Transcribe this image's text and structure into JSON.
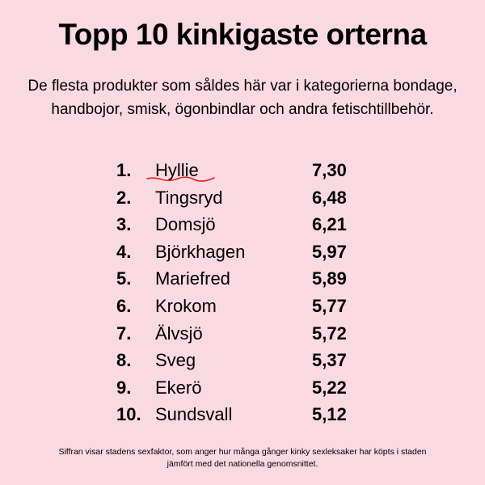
{
  "title": "Topp 10 kinkigaste orterna",
  "subtitle": "De flesta produkter som såldes här var i kategorierna bondage, handbojor, smisk, ögonbindlar och andra fetischtillbehör.",
  "footnote": "Siffran visar stadens sexfaktor, som anger hur många gånger kinky sexleksaker har köpts i staden jämfört med det nationella genomsnittet.",
  "chart_data": {
    "type": "table",
    "rows": [
      {
        "rank": "1.",
        "place": "Hyllie",
        "value": "7,30"
      },
      {
        "rank": "2.",
        "place": "Tingsryd",
        "value": "6,48"
      },
      {
        "rank": "3.",
        "place": "Domsjö",
        "value": "6,21"
      },
      {
        "rank": "4.",
        "place": "Björkhagen",
        "value": "5,97"
      },
      {
        "rank": "5.",
        "place": "Mariefred",
        "value": "5,89"
      },
      {
        "rank": "6.",
        "place": "Krokom",
        "value": "5,77"
      },
      {
        "rank": "7.",
        "place": "Älvsjö",
        "value": "5,72"
      },
      {
        "rank": "8.",
        "place": "Sveg",
        "value": "5,37"
      },
      {
        "rank": "9.",
        "place": "Ekerö",
        "value": "5,22"
      },
      {
        "rank": "10.",
        "place": "Sundsvall",
        "value": "5,12"
      }
    ]
  },
  "colors": {
    "background": "#f9d9e2",
    "text": "#000000",
    "spellcheck_underline": "#e0241b"
  }
}
